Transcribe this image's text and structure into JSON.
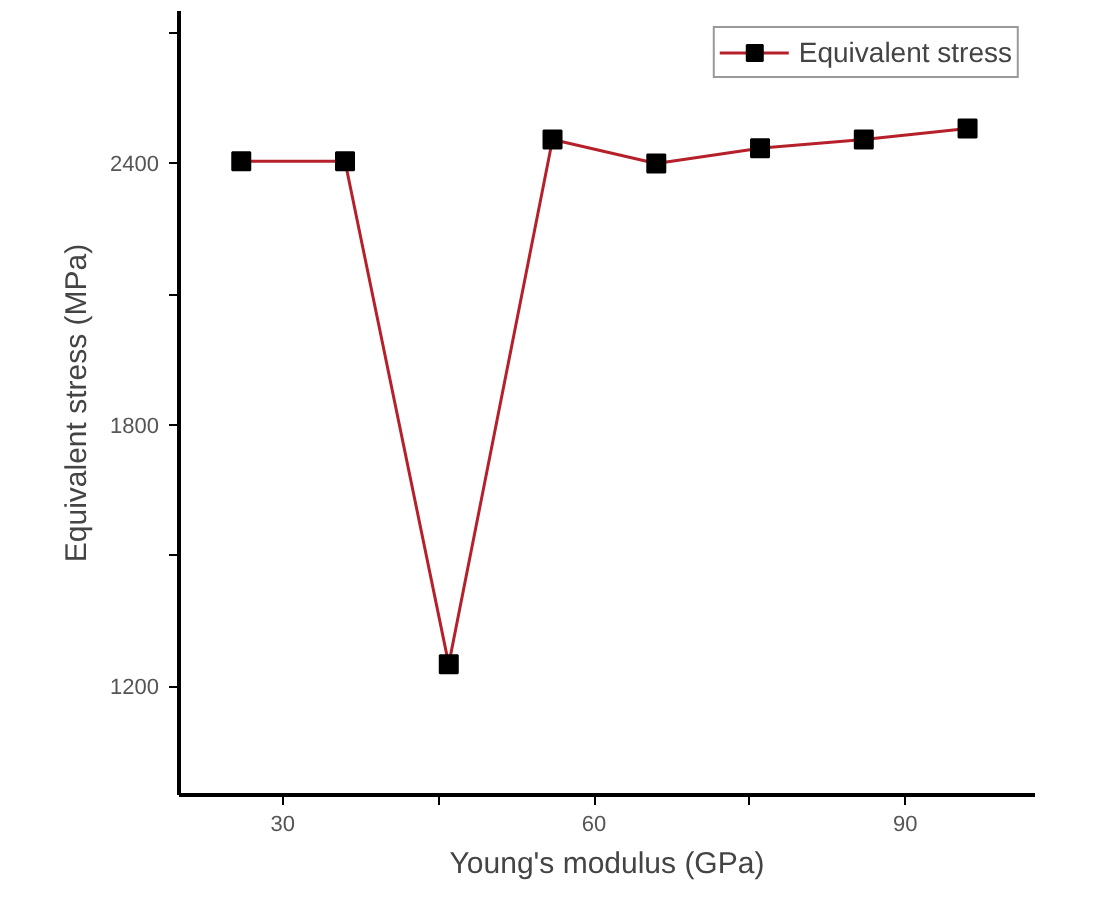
{
  "chart_data": {
    "type": "line",
    "xlabel": "Young's modulus (GPa)",
    "ylabel": "Equivalent stress (MPa)",
    "x": [
      26,
      36,
      46,
      56,
      66,
      76,
      86,
      96
    ],
    "series": [
      {
        "name": "Equivalent stress",
        "color": "#b5202a",
        "values": [
          2405,
          2405,
          1250,
          2455,
          2400,
          2435,
          2455,
          2480
        ]
      }
    ],
    "xlim": [
      20,
      102.5
    ],
    "ylim": [
      950,
      2750
    ],
    "xticks": [
      30,
      {
        "value": 45,
        "label": null
      },
      60,
      {
        "value": 75,
        "label": null
      },
      90
    ],
    "yticks": [
      1200,
      {
        "value": 1500,
        "label": null
      },
      1800,
      {
        "value": 2100,
        "label": null
      },
      2400,
      {
        "value": 2700,
        "label": null
      }
    ],
    "marker": "square",
    "line_style": "solid",
    "grid": false,
    "legend": "top right"
  }
}
